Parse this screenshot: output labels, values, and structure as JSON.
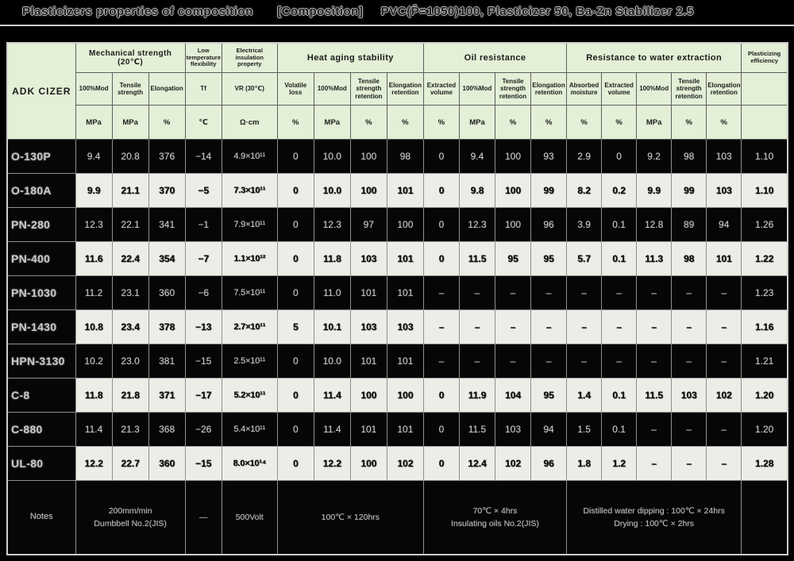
{
  "title": {
    "main": "Plasticizers properties of composition",
    "bracket": "[Composition]",
    "composition": "PVC(P̄=1050)100, Plasticizer 50, Ba-Zn Stabilizer 2.5"
  },
  "table": {
    "corner_label": "ADK CIZER",
    "groups": {
      "mechanical": "Mechanical strength (20℃)",
      "low_temp": "Low temperature flexibility",
      "electrical": "Electrical insulation property",
      "heat_aging": "Heat aging stability",
      "oil": "Oil resistance",
      "water": "Resistance to water extraction",
      "efficiency": "Plasticizing efficiency"
    },
    "subheaders": [
      "100%Mod",
      "Tensile strength",
      "Elongation",
      "Tf",
      "VR (30℃)",
      "Volatile loss",
      "100%Mod",
      "Tensile strength retention",
      "Elongation retention",
      "Extracted volume",
      "100%Mod",
      "Tensile strength retention",
      "Elongation retention",
      "Absorbed moisture",
      "Extracted volume",
      "100%Mod",
      "Tensile strength retention",
      "Elongation retention"
    ],
    "units": [
      "MPa",
      "MPa",
      "%",
      "℃",
      "Ω·cm",
      "%",
      "MPa",
      "%",
      "%",
      "%",
      "MPa",
      "%",
      "%",
      "%",
      "%",
      "MPa",
      "%",
      "%"
    ],
    "rows": [
      {
        "grade": "O-130P",
        "values": [
          "9.4",
          "20.8",
          "376",
          "−14",
          "4.9×10¹¹",
          "0",
          "10.0",
          "100",
          "98",
          "0",
          "9.4",
          "100",
          "93",
          "2.9",
          "0",
          "9.2",
          "98",
          "103",
          "1.10"
        ]
      },
      {
        "grade": "O-180A",
        "values": [
          "9.9",
          "21.1",
          "370",
          "−5",
          "7.3×10¹¹",
          "0",
          "10.0",
          "100",
          "101",
          "0",
          "9.8",
          "100",
          "99",
          "8.2",
          "0.2",
          "9.9",
          "99",
          "103",
          "1.10"
        ]
      },
      {
        "grade": "PN-280",
        "values": [
          "12.3",
          "22.1",
          "341",
          "−1",
          "7.9×10¹¹",
          "0",
          "12.3",
          "97",
          "100",
          "0",
          "12.3",
          "100",
          "96",
          "3.9",
          "0.1",
          "12.8",
          "89",
          "94",
          "1.26"
        ]
      },
      {
        "grade": "PN-400",
        "values": [
          "11.6",
          "22.4",
          "354",
          "−7",
          "1.1×10¹²",
          "0",
          "11.8",
          "103",
          "101",
          "0",
          "11.5",
          "95",
          "95",
          "5.7",
          "0.1",
          "11.3",
          "98",
          "101",
          "1.22"
        ]
      },
      {
        "grade": "PN-1030",
        "values": [
          "11.2",
          "23.1",
          "360",
          "−6",
          "7.5×10¹¹",
          "0",
          "11.0",
          "101",
          "101",
          "–",
          "–",
          "–",
          "–",
          "–",
          "–",
          "–",
          "–",
          "–",
          "1.23"
        ]
      },
      {
        "grade": "PN-1430",
        "values": [
          "10.8",
          "23.4",
          "378",
          "−13",
          "2.7×10¹¹",
          "5",
          "10.1",
          "103",
          "103",
          "–",
          "–",
          "–",
          "–",
          "–",
          "–",
          "–",
          "–",
          "–",
          "1.16"
        ]
      },
      {
        "grade": "HPN-3130",
        "values": [
          "10.2",
          "23.0",
          "381",
          "−15",
          "2.5×10¹¹",
          "0",
          "10.0",
          "101",
          "101",
          "–",
          "–",
          "–",
          "–",
          "–",
          "–",
          "–",
          "–",
          "–",
          "1.21"
        ]
      },
      {
        "grade": "C-8",
        "values": [
          "11.8",
          "21.8",
          "371",
          "−17",
          "5.2×10¹¹",
          "0",
          "11.4",
          "100",
          "100",
          "0",
          "11.9",
          "104",
          "95",
          "1.4",
          "0.1",
          "11.5",
          "103",
          "102",
          "1.20"
        ]
      },
      {
        "grade": "C-880",
        "values": [
          "11.4",
          "21.3",
          "368",
          "−26",
          "5.4×10¹¹",
          "0",
          "11.4",
          "101",
          "101",
          "0",
          "11.5",
          "103",
          "94",
          "1.5",
          "0.1",
          "–",
          "–",
          "–",
          "1.20"
        ]
      },
      {
        "grade": "UL-80",
        "values": [
          "12.2",
          "22.7",
          "360",
          "−15",
          "8.0×10¹⁴",
          "0",
          "12.2",
          "100",
          "102",
          "0",
          "12.4",
          "102",
          "96",
          "1.8",
          "1.2",
          "–",
          "–",
          "–",
          "1.28"
        ]
      }
    ],
    "notes": {
      "label": "Notes",
      "mechanical": "200mm/min\nDumbbell No.2(JIS)",
      "low_temp": "—",
      "electrical": "500Volt",
      "heat_aging": "100℃ × 120hrs",
      "oil": "70℃ × 4hrs\nInsulating oils No.2(JIS)",
      "water": "Distilled water dipping : 100℃ × 24hrs\nDrying : 100℃ × 2hrs",
      "efficiency": ""
    }
  }
}
